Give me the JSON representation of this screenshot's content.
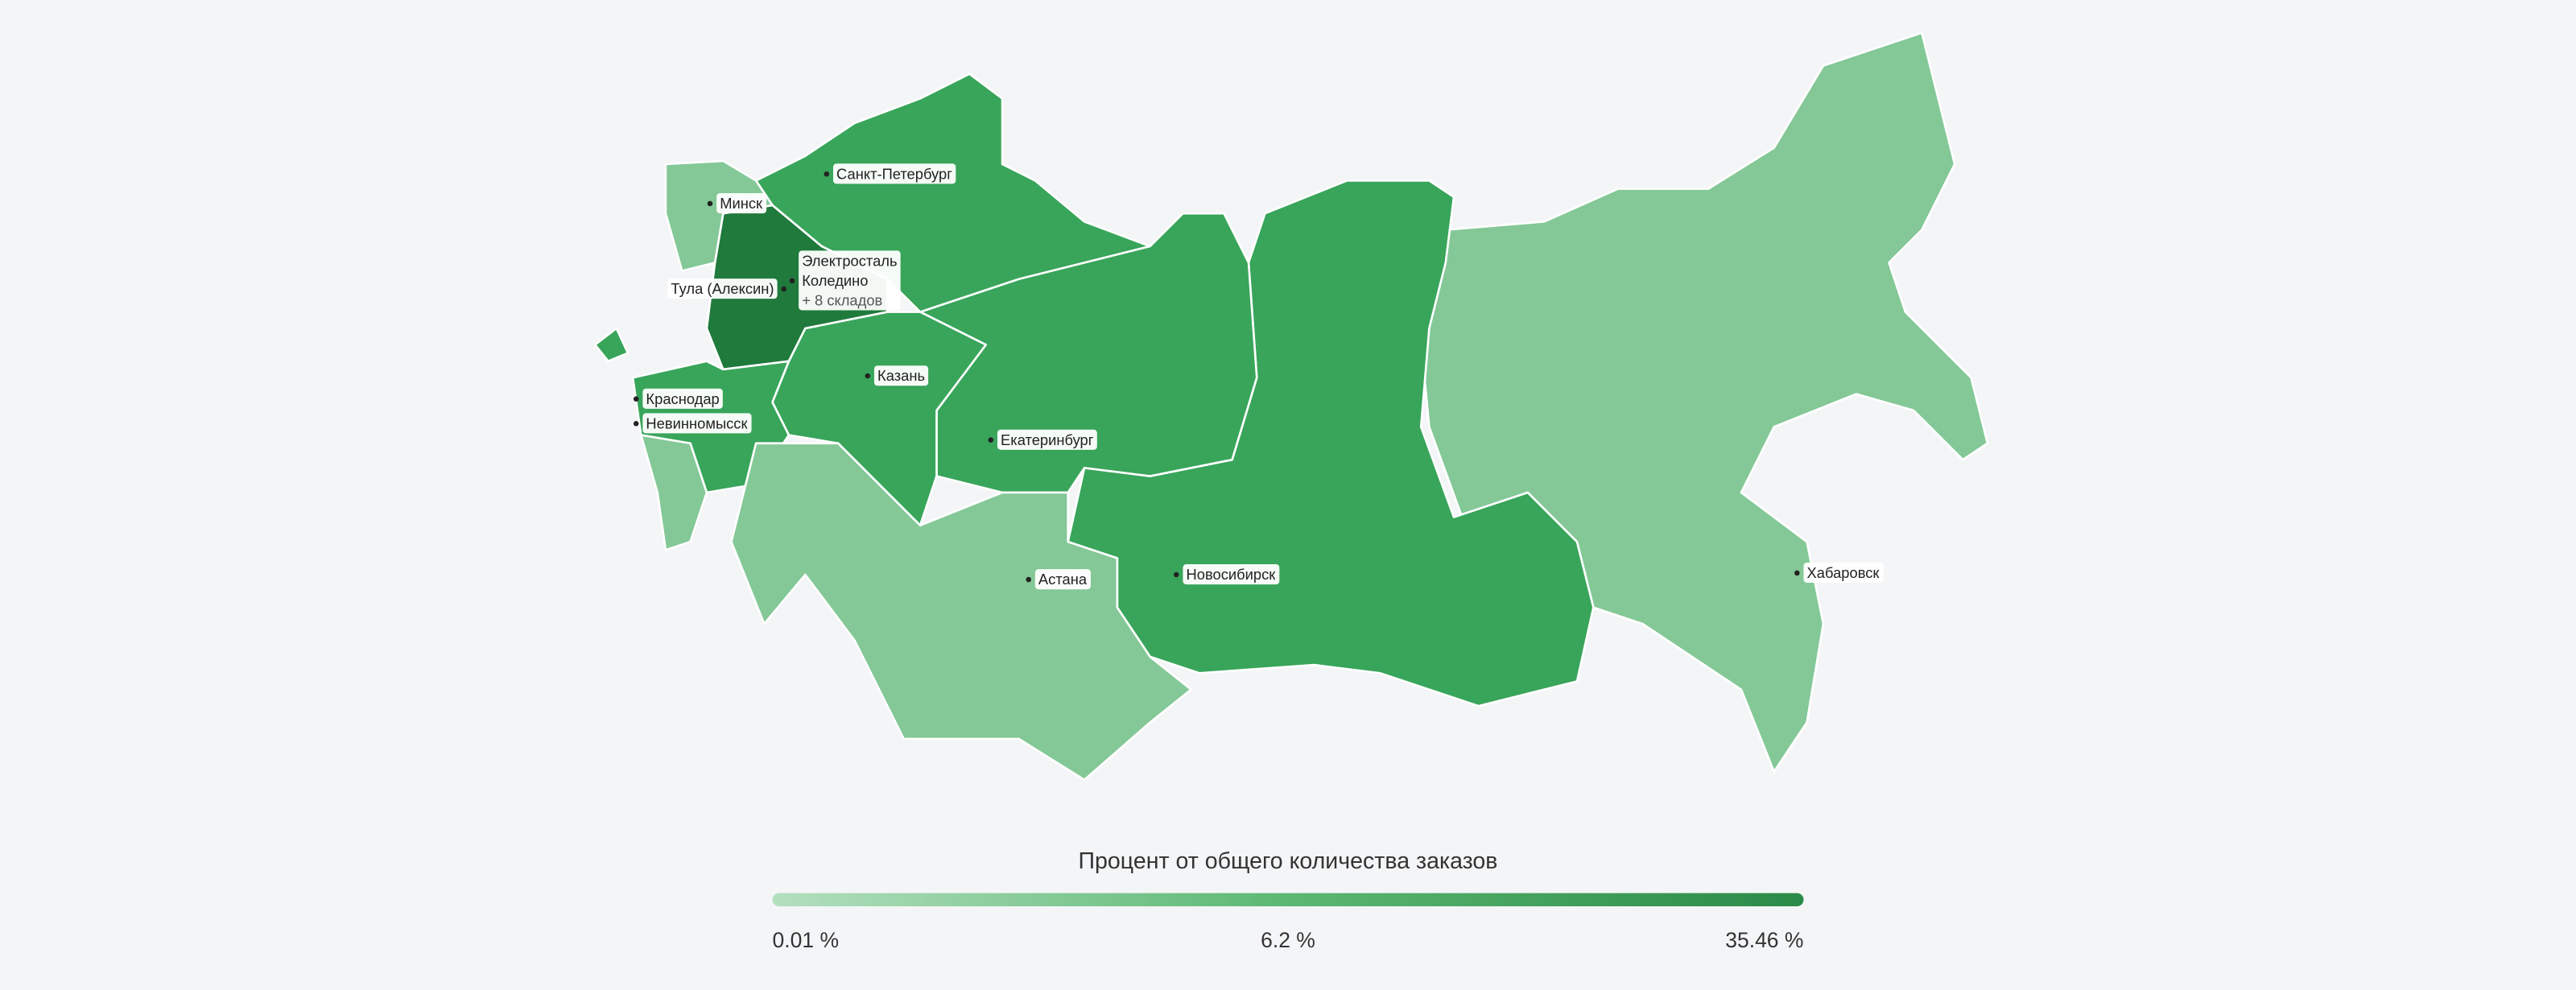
{
  "labels": [
    {
      "lines": [
        "Санкт-Петербург"
      ]
    },
    {
      "lines": [
        "Минск"
      ]
    },
    {
      "lines": [
        "Тула (Алексин)"
      ]
    },
    {
      "lines": [
        "Электросталь",
        "Коледино",
        "+ 8 складов"
      ]
    },
    {
      "lines": [
        "Казань"
      ]
    },
    {
      "lines": [
        "Екатеринбург"
      ]
    },
    {
      "lines": [
        "Краснодар"
      ]
    },
    {
      "lines": [
        "Невинномысск"
      ]
    },
    {
      "lines": [
        "Астана"
      ]
    },
    {
      "lines": [
        "Новосибирск"
      ]
    },
    {
      "lines": [
        "Хабаровск"
      ]
    }
  ],
  "legend": {
    "title": "Процент от общего количества заказов",
    "ticks": [
      "0.01 %",
      "6.2 %",
      "35.46 %"
    ]
  }
}
